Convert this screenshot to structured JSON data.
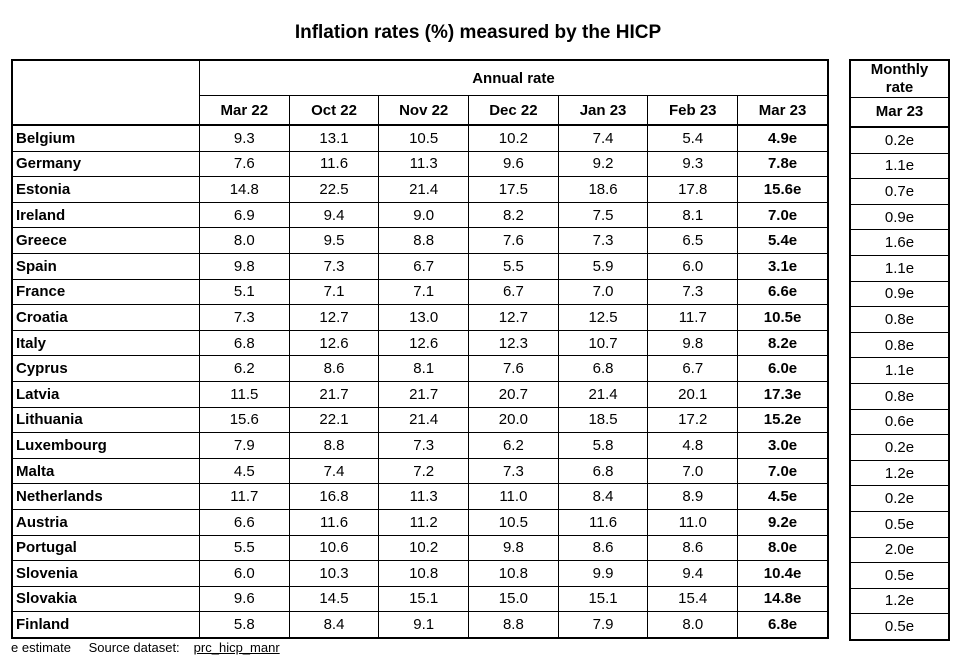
{
  "title": "Inflation rates (%) measured by the HICP",
  "annual_header": "Annual rate",
  "monthly_header_line1": "Monthly",
  "monthly_header_line2": "rate",
  "columns": [
    "Mar 22",
    "Oct 22",
    "Nov 22",
    "Dec 22",
    "Jan 23",
    "Feb 23",
    "Mar 23"
  ],
  "monthly_column": "Mar 23",
  "rows": [
    {
      "country": "Belgium",
      "values": [
        "9.3",
        "13.1",
        "10.5",
        "10.2",
        "7.4",
        "5.4",
        "4.9e"
      ],
      "monthly": "0.2e"
    },
    {
      "country": "Germany",
      "values": [
        "7.6",
        "11.6",
        "11.3",
        "9.6",
        "9.2",
        "9.3",
        "7.8e"
      ],
      "monthly": "1.1e"
    },
    {
      "country": "Estonia",
      "values": [
        "14.8",
        "22.5",
        "21.4",
        "17.5",
        "18.6",
        "17.8",
        "15.6e"
      ],
      "monthly": "0.7e"
    },
    {
      "country": "Ireland",
      "values": [
        "6.9",
        "9.4",
        "9.0",
        "8.2",
        "7.5",
        "8.1",
        "7.0e"
      ],
      "monthly": "0.9e"
    },
    {
      "country": "Greece",
      "values": [
        "8.0",
        "9.5",
        "8.8",
        "7.6",
        "7.3",
        "6.5",
        "5.4e"
      ],
      "monthly": "1.6e"
    },
    {
      "country": "Spain",
      "values": [
        "9.8",
        "7.3",
        "6.7",
        "5.5",
        "5.9",
        "6.0",
        "3.1e"
      ],
      "monthly": "1.1e"
    },
    {
      "country": "France",
      "values": [
        "5.1",
        "7.1",
        "7.1",
        "6.7",
        "7.0",
        "7.3",
        "6.6e"
      ],
      "monthly": "0.9e"
    },
    {
      "country": "Croatia",
      "values": [
        "7.3",
        "12.7",
        "13.0",
        "12.7",
        "12.5",
        "11.7",
        "10.5e"
      ],
      "monthly": "0.8e"
    },
    {
      "country": "Italy",
      "values": [
        "6.8",
        "12.6",
        "12.6",
        "12.3",
        "10.7",
        "9.8",
        "8.2e"
      ],
      "monthly": "0.8e"
    },
    {
      "country": "Cyprus",
      "values": [
        "6.2",
        "8.6",
        "8.1",
        "7.6",
        "6.8",
        "6.7",
        "6.0e"
      ],
      "monthly": "1.1e"
    },
    {
      "country": "Latvia",
      "values": [
        "11.5",
        "21.7",
        "21.7",
        "20.7",
        "21.4",
        "20.1",
        "17.3e"
      ],
      "monthly": "0.8e"
    },
    {
      "country": "Lithuania",
      "values": [
        "15.6",
        "22.1",
        "21.4",
        "20.0",
        "18.5",
        "17.2",
        "15.2e"
      ],
      "monthly": "0.6e"
    },
    {
      "country": "Luxembourg",
      "values": [
        "7.9",
        "8.8",
        "7.3",
        "6.2",
        "5.8",
        "4.8",
        "3.0e"
      ],
      "monthly": "0.2e"
    },
    {
      "country": "Malta",
      "values": [
        "4.5",
        "7.4",
        "7.2",
        "7.3",
        "6.8",
        "7.0",
        "7.0e"
      ],
      "monthly": "1.2e"
    },
    {
      "country": "Netherlands",
      "values": [
        "11.7",
        "16.8",
        "11.3",
        "11.0",
        "8.4",
        "8.9",
        "4.5e"
      ],
      "monthly": "0.2e"
    },
    {
      "country": "Austria",
      "values": [
        "6.6",
        "11.6",
        "11.2",
        "10.5",
        "11.6",
        "11.0",
        "9.2e"
      ],
      "monthly": "0.5e"
    },
    {
      "country": "Portugal",
      "values": [
        "5.5",
        "10.6",
        "10.2",
        "9.8",
        "8.6",
        "8.6",
        "8.0e"
      ],
      "monthly": "2.0e"
    },
    {
      "country": "Slovenia",
      "values": [
        "6.0",
        "10.3",
        "10.8",
        "10.8",
        "9.9",
        "9.4",
        "10.4e"
      ],
      "monthly": "0.5e"
    },
    {
      "country": "Slovakia",
      "values": [
        "9.6",
        "14.5",
        "15.1",
        "15.0",
        "15.1",
        "15.4",
        "14.8e"
      ],
      "monthly": "1.2e"
    },
    {
      "country": "Finland",
      "values": [
        "5.8",
        "8.4",
        "9.1",
        "8.8",
        "7.9",
        "8.0",
        "6.8e"
      ],
      "monthly": "0.5e"
    }
  ],
  "footer": {
    "note": "e estimate",
    "source_label": "Source dataset:",
    "source_link": "prc_hicp_manr"
  }
}
